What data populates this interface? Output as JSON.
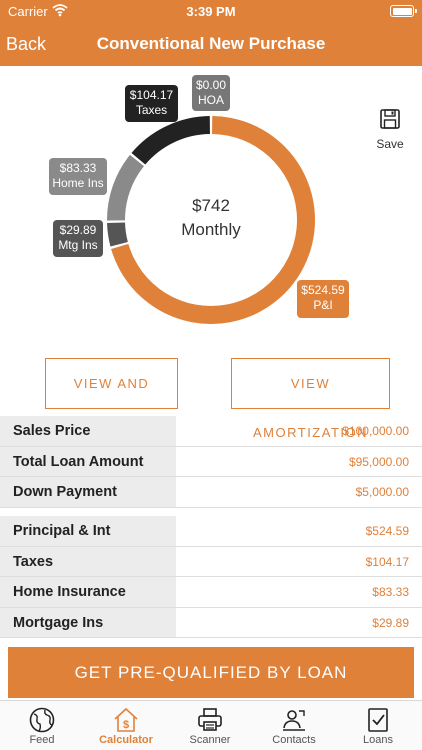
{
  "status": {
    "carrier": "Carrier",
    "time": "3:39 PM"
  },
  "nav": {
    "back_label": "Back",
    "title": "Conventional New Purchase"
  },
  "colors": {
    "accent": "#e0813a",
    "taxes": "#222222",
    "hoa": "#777777",
    "home_ins": "#8a8a8a",
    "mtg_ins": "#555555"
  },
  "chart_data": {
    "type": "pie",
    "center_amount": "$742",
    "center_label": "Monthly",
    "slices": [
      {
        "label": "P&I",
        "value_label": "$524.59",
        "value": 524.59,
        "color": "#e0813a"
      },
      {
        "label": "Mtg Ins",
        "value_label": "$29.89",
        "value": 29.89,
        "color": "#555555"
      },
      {
        "label": "Home Ins",
        "value_label": "$83.33",
        "value": 83.33,
        "color": "#8a8a8a"
      },
      {
        "label": "Taxes",
        "value_label": "$104.17",
        "value": 104.17,
        "color": "#222222"
      },
      {
        "label": "HOA",
        "value_label": "$0.00",
        "value": 0,
        "color": "#777777"
      }
    ]
  },
  "save": {
    "label": "Save",
    "icon": "floppy-disk-icon"
  },
  "actions": {
    "share_label": "VIEW AND SHARE",
    "amortization_label": "VIEW AMORTIZATION"
  },
  "loan_summary": [
    {
      "label": "Sales Price",
      "value": "$100,000.00"
    },
    {
      "label": "Total Loan Amount",
      "value": "$95,000.00"
    },
    {
      "label": "Down Payment",
      "value": "$5,000.00"
    }
  ],
  "payment_breakdown": [
    {
      "label": "Principal & Int",
      "value": "$524.59"
    },
    {
      "label": "Taxes",
      "value": "$104.17"
    },
    {
      "label": "Home Insurance",
      "value": "$83.33"
    },
    {
      "label": "Mortgage Ins",
      "value": "$29.89"
    }
  ],
  "cta": {
    "label": "GET PRE-QUALIFIED BY LOAN"
  },
  "tabs": [
    {
      "label": "Feed",
      "icon": "globe-icon"
    },
    {
      "label": "Calculator",
      "icon": "house-dollar-icon"
    },
    {
      "label": "Scanner",
      "icon": "printer-icon"
    },
    {
      "label": "Contacts",
      "icon": "contacts-icon"
    },
    {
      "label": "Loans",
      "icon": "document-check-icon"
    }
  ]
}
